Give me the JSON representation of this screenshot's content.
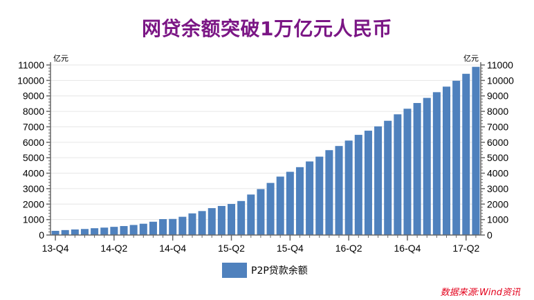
{
  "title": "网贷余额突破1万亿元人民币",
  "source": "数据来源:Wind资讯",
  "colors": {
    "bar": "#4f81bd",
    "title": "#7b1685",
    "source": "#e3001b"
  },
  "chart_data": {
    "type": "bar",
    "title": "网贷余额突破1万亿元人民币",
    "ylabel_left": "亿元",
    "ylabel_right": "亿元",
    "ylim": [
      0,
      11000
    ],
    "yticks": [
      0,
      1000,
      2000,
      3000,
      4000,
      5000,
      6000,
      7000,
      8000,
      9000,
      10000,
      11000
    ],
    "x_tick_labels": [
      "13-Q4",
      "14-Q2",
      "14-Q4",
      "15-Q2",
      "15-Q4",
      "16-Q2",
      "16-Q4",
      "17-Q2"
    ],
    "legend_position": "bottom",
    "grid": true,
    "series": [
      {
        "name": "P2P贷款余额",
        "values": [
          270,
          320,
          360,
          390,
          440,
          480,
          530,
          580,
          650,
          730,
          860,
          1030,
          1040,
          1180,
          1400,
          1550,
          1740,
          1880,
          2010,
          2200,
          2620,
          2970,
          3370,
          3780,
          4090,
          4390,
          4760,
          5070,
          5490,
          5760,
          6110,
          6480,
          6750,
          7030,
          7390,
          7810,
          8170,
          8540,
          8870,
          9240,
          9600,
          9980,
          10430,
          10880
        ]
      }
    ]
  }
}
